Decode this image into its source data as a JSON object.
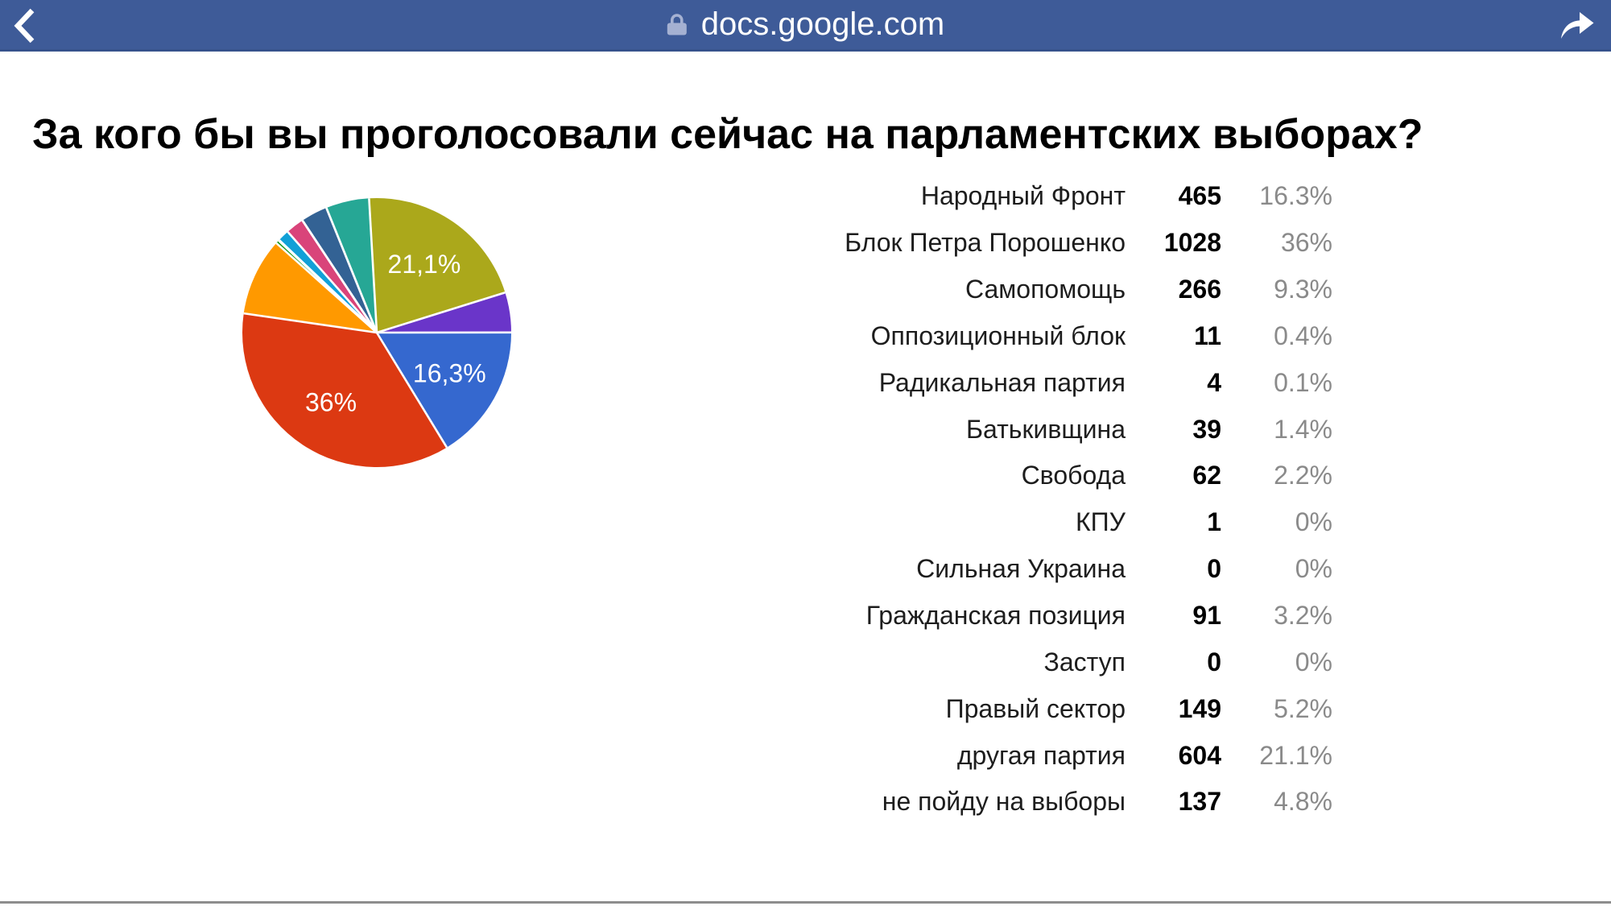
{
  "browser": {
    "bar_color": "#3E5B98",
    "url": "docs.google.com",
    "icons": {
      "back": "back-chevron-icon",
      "lock": "lock-icon",
      "share": "share-forward-icon"
    }
  },
  "page": {
    "title": "За кого бы вы проголосовали сейчас на парламентских выборах?",
    "bottom_divider_color": "#8D8D8D"
  },
  "chart_data": {
    "type": "pie",
    "title": "За кого бы вы проголосовали сейчас на парламентских выборах?",
    "legend_position": "none",
    "start_angle_deg": -3.3,
    "slices": [
      {
        "label": "другая партия",
        "value": 604,
        "pct": 21.1,
        "color": "#ABA81B",
        "pie_label": "21,1%"
      },
      {
        "label": "не пойду на выборы",
        "value": 137,
        "pct": 4.8,
        "color": "#6A35C9"
      },
      {
        "label": "Народный Фронт",
        "value": 465,
        "pct": 16.3,
        "color": "#3568CF",
        "pie_label": "16,3%"
      },
      {
        "label": "Блок Петра Порошенко",
        "value": 1028,
        "pct": 36,
        "color": "#DC3912",
        "pie_label": "36%"
      },
      {
        "label": "Самопомощь",
        "value": 266,
        "pct": 9.3,
        "color": "#FF9900"
      },
      {
        "label": "Оппозиционный блок",
        "value": 11,
        "pct": 0.4,
        "color": "#109618"
      },
      {
        "label": "Радикальная партия",
        "value": 4,
        "pct": 0.1,
        "color": "#990099"
      },
      {
        "label": "Батькивщина",
        "value": 39,
        "pct": 1.4,
        "color": "#12A0D7"
      },
      {
        "label": "Свобода",
        "value": 62,
        "pct": 2.2,
        "color": "#D9447A"
      },
      {
        "label": "КПУ",
        "value": 1,
        "pct": 0,
        "color": "#66AA00"
      },
      {
        "label": "Сильная Украина",
        "value": 0,
        "pct": 0,
        "color": "#B82E2E"
      },
      {
        "label": "Гражданская позиция",
        "value": 91,
        "pct": 3.2,
        "color": "#336294"
      },
      {
        "label": "Заступ",
        "value": 0,
        "pct": 0,
        "color": "#994499"
      },
      {
        "label": "Правый сектор",
        "value": 149,
        "pct": 5.2,
        "color": "#26A795"
      }
    ]
  },
  "results_table": {
    "rows": [
      {
        "party": "Народный Фронт",
        "count": "465",
        "pct": "16.3%"
      },
      {
        "party": "Блок Петра Порошенко",
        "count": "1028",
        "pct": "36%"
      },
      {
        "party": "Самопомощь",
        "count": "266",
        "pct": "9.3%"
      },
      {
        "party": "Оппозиционный блок",
        "count": "11",
        "pct": "0.4%"
      },
      {
        "party": "Радикальная партия",
        "count": "4",
        "pct": "0.1%"
      },
      {
        "party": "Батькивщина",
        "count": "39",
        "pct": "1.4%"
      },
      {
        "party": "Свобода",
        "count": "62",
        "pct": "2.2%"
      },
      {
        "party": "КПУ",
        "count": "1",
        "pct": "0%"
      },
      {
        "party": "Сильная Украина",
        "count": "0",
        "pct": "0%"
      },
      {
        "party": "Гражданская позиция",
        "count": "91",
        "pct": "3.2%"
      },
      {
        "party": "Заступ",
        "count": "0",
        "pct": "0%"
      },
      {
        "party": "Правый сектор",
        "count": "149",
        "pct": "5.2%"
      },
      {
        "party": "другая партия",
        "count": "604",
        "pct": "21.1%"
      },
      {
        "party": "не пойду на выборы",
        "count": "137",
        "pct": "4.8%"
      }
    ]
  }
}
